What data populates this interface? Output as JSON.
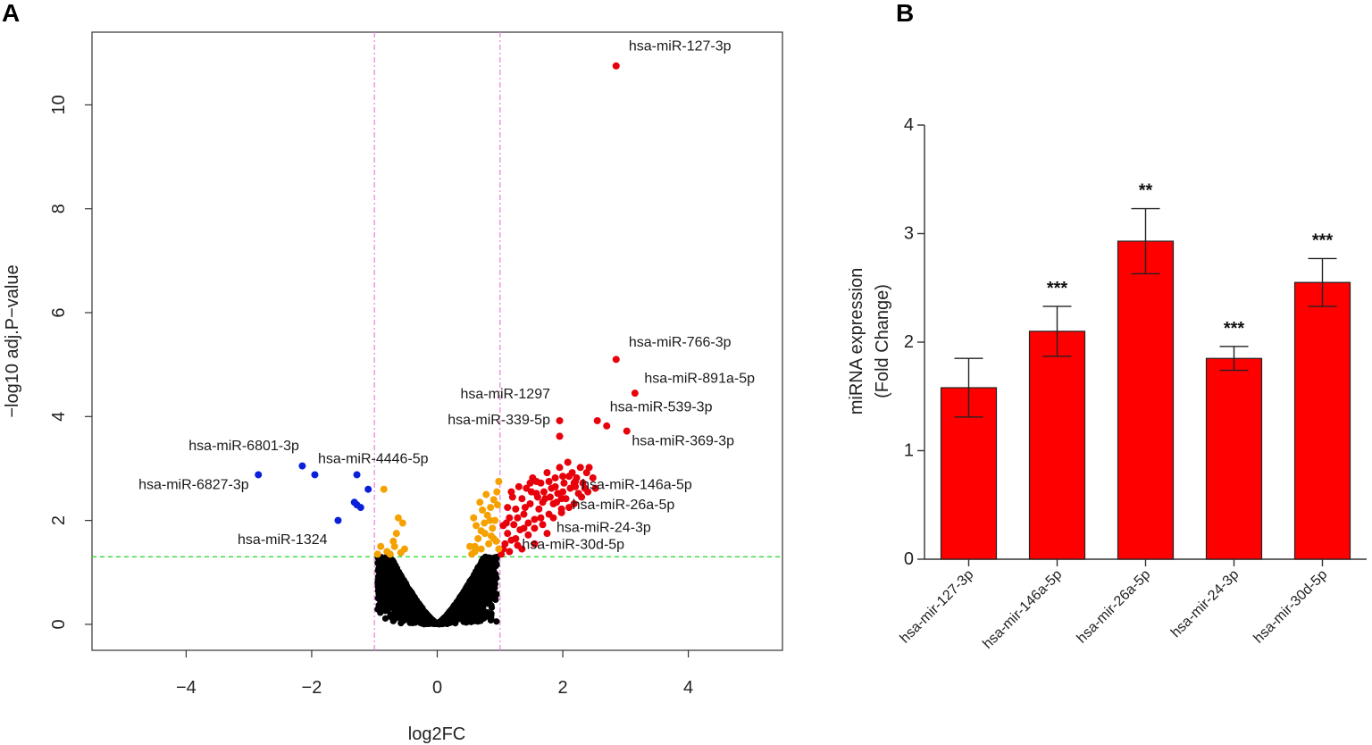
{
  "panels": {
    "a_label": "A",
    "b_label": "B"
  },
  "chart_data": [
    {
      "type": "scatter",
      "name": "volcano",
      "xlabel": "log2FC",
      "ylabel": "−log10 adj.P−value",
      "xlim": [
        -5.5,
        5.5
      ],
      "ylim": [
        -0.5,
        11.4
      ],
      "xticks": [
        -4,
        -2,
        0,
        2,
        4
      ],
      "yticks": [
        0,
        2,
        4,
        6,
        8,
        10
      ],
      "xtick_labels": [
        "−4",
        "−2",
        "0",
        "2",
        "4"
      ],
      "ytick_labels": [
        "0",
        "2",
        "4",
        "6",
        "8",
        "10"
      ],
      "vlines": [
        -1,
        1
      ],
      "hline": 1.3,
      "colors": {
        "up": "#e8000b",
        "down": "#0a1fd8",
        "moderate": "#f5a100",
        "ns": "#000000",
        "threshold_v": "#e77ee0",
        "threshold_h": "#33dd33"
      },
      "series": [
        {
          "name": "up-highlighted",
          "color": "#e8000b",
          "points": [
            [
              2.85,
              10.75
            ],
            [
              2.85,
              5.1
            ],
            [
              3.15,
              4.45
            ],
            [
              2.55,
              3.92
            ],
            [
              2.7,
              3.82
            ],
            [
              3.02,
              3.72
            ],
            [
              1.95,
              3.92
            ],
            [
              1.95,
              3.62
            ],
            [
              2.18,
              2.72
            ],
            [
              1.98,
              2.42
            ],
            [
              1.98,
              2.15
            ],
            [
              1.55,
              1.85
            ]
          ]
        },
        {
          "name": "up",
          "color": "#e8000b",
          "points": [
            [
              1.02,
              1.35
            ],
            [
              1.08,
              1.55
            ],
            [
              1.12,
              1.75
            ],
            [
              1.05,
              1.45
            ],
            [
              1.15,
              2.05
            ],
            [
              1.18,
              1.62
            ],
            [
              1.22,
              1.92
            ],
            [
              1.25,
              2.22
            ],
            [
              1.28,
              1.52
            ],
            [
              1.32,
              1.82
            ],
            [
              1.35,
              2.42
            ],
            [
              1.38,
              2.12
            ],
            [
              1.42,
              2.62
            ],
            [
              1.45,
              1.72
            ],
            [
              1.48,
              2.32
            ],
            [
              1.52,
              2.82
            ],
            [
              1.55,
              2.02
            ],
            [
              1.58,
              2.52
            ],
            [
              1.62,
              2.22
            ],
            [
              1.65,
              2.72
            ],
            [
              1.68,
              1.92
            ],
            [
              1.72,
              2.42
            ],
            [
              1.75,
              2.92
            ],
            [
              1.78,
              2.12
            ],
            [
              1.82,
              2.62
            ],
            [
              1.85,
              2.32
            ],
            [
              1.88,
              2.82
            ],
            [
              1.92,
              2.52
            ],
            [
              1.95,
              3.02
            ],
            [
              1.98,
              2.22
            ],
            [
              2.02,
              2.72
            ],
            [
              2.05,
              2.42
            ],
            [
              2.08,
              3.12
            ],
            [
              2.12,
              2.62
            ],
            [
              2.15,
              2.92
            ],
            [
              2.18,
              2.32
            ],
            [
              2.22,
              2.82
            ],
            [
              2.25,
              2.52
            ],
            [
              2.28,
              3.02
            ],
            [
              2.32,
              2.72
            ],
            [
              2.35,
              2.62
            ],
            [
              2.38,
              2.92
            ],
            [
              2.42,
              3.02
            ],
            [
              2.48,
              2.82
            ],
            [
              2.52,
              2.62
            ],
            [
              1.1,
              1.95
            ],
            [
              1.2,
              2.45
            ],
            [
              1.3,
              2.65
            ],
            [
              1.4,
              2.25
            ],
            [
              1.5,
              2.55
            ],
            [
              1.6,
              2.45
            ],
            [
              1.7,
              2.55
            ],
            [
              1.8,
              2.45
            ],
            [
              1.9,
              2.35
            ],
            [
              2.0,
              2.55
            ],
            [
              2.1,
              2.85
            ],
            [
              2.2,
              2.65
            ],
            [
              2.3,
              2.45
            ],
            [
              1.15,
              1.4
            ],
            [
              1.25,
              1.65
            ],
            [
              1.35,
              1.45
            ],
            [
              1.45,
              1.95
            ],
            [
              1.55,
              1.55
            ],
            [
              1.65,
              2.05
            ],
            [
              1.75,
              1.75
            ],
            [
              1.85,
              2.05
            ],
            [
              2.0,
              2.85
            ],
            [
              2.1,
              2.25
            ],
            [
              2.2,
              2.75
            ],
            [
              2.4,
              2.55
            ],
            [
              1.05,
              1.9
            ],
            [
              1.12,
              2.25
            ],
            [
              1.18,
              2.55
            ],
            [
              1.28,
              2.05
            ],
            [
              1.38,
              1.85
            ],
            [
              1.48,
              2.72
            ],
            [
              1.58,
              2.75
            ],
            [
              1.68,
              2.35
            ],
            [
              1.78,
              2.75
            ],
            [
              1.88,
              2.65
            ]
          ]
        },
        {
          "name": "down",
          "color": "#0a1fd8",
          "points": [
            [
              -2.85,
              2.88
            ],
            [
              -2.15,
              3.05
            ],
            [
              -1.95,
              2.88
            ],
            [
              -1.28,
              2.88
            ],
            [
              -1.1,
              2.6
            ],
            [
              -1.32,
              2.35
            ],
            [
              -1.22,
              2.25
            ],
            [
              -1.28,
              2.3
            ],
            [
              -1.58,
              2.0
            ]
          ]
        },
        {
          "name": "moderate",
          "color": "#f5a100",
          "points": [
            [
              -0.85,
              2.6
            ],
            [
              -0.62,
              2.05
            ],
            [
              -0.55,
              1.95
            ],
            [
              -0.65,
              1.75
            ],
            [
              -0.7,
              1.6
            ],
            [
              -0.52,
              1.45
            ],
            [
              -0.8,
              1.4
            ],
            [
              -0.9,
              1.5
            ],
            [
              -0.75,
              1.35
            ],
            [
              -0.95,
              1.35
            ],
            [
              -0.58,
              1.38
            ],
            [
              -0.68,
              1.5
            ],
            [
              0.55,
              1.35
            ],
            [
              0.6,
              1.5
            ],
            [
              0.65,
              1.65
            ],
            [
              0.7,
              1.8
            ],
            [
              0.75,
              1.95
            ],
            [
              0.8,
              2.1
            ],
            [
              0.85,
              2.25
            ],
            [
              0.9,
              2.4
            ],
            [
              0.95,
              2.55
            ],
            [
              0.98,
              1.45
            ],
            [
              0.62,
              1.9
            ],
            [
              0.72,
              2.2
            ],
            [
              0.82,
              1.55
            ],
            [
              0.88,
              1.85
            ],
            [
              0.92,
              2.0
            ],
            [
              0.96,
              2.3
            ],
            [
              0.58,
              2.05
            ],
            [
              0.68,
              2.35
            ],
            [
              0.78,
              2.5
            ],
            [
              0.86,
              1.7
            ],
            [
              0.94,
              1.6
            ],
            [
              0.52,
              1.5
            ],
            [
              0.7,
              1.45
            ],
            [
              0.76,
              1.75
            ],
            [
              0.84,
              2.0
            ],
            [
              0.9,
              1.65
            ],
            [
              0.98,
              2.75
            ],
            [
              0.6,
              1.4
            ]
          ]
        }
      ],
      "black_cloud": {
        "count": 2200,
        "scale": 1.9,
        "exponent": 1.3,
        "color": "#000000"
      },
      "annotations": [
        {
          "text": "hsa-miR-127-3p",
          "x": 3.05,
          "y": 11.05,
          "anchor": "start"
        },
        {
          "text": "hsa-miR-766-3p",
          "x": 3.05,
          "y": 5.35,
          "anchor": "start"
        },
        {
          "text": "hsa-miR-891a-5p",
          "x": 3.3,
          "y": 4.65,
          "anchor": "start"
        },
        {
          "text": "hsa-miR-539-3p",
          "x": 2.75,
          "y": 4.1,
          "anchor": "start"
        },
        {
          "text": "hsa-miR-369-3p",
          "x": 3.1,
          "y": 3.45,
          "anchor": "start"
        },
        {
          "text": "hsa-miR-1297",
          "x": 1.8,
          "y": 4.35,
          "anchor": "end"
        },
        {
          "text": "hsa-miR-339-5p",
          "x": 1.8,
          "y": 3.85,
          "anchor": "end"
        },
        {
          "text": "hsa-miR-146a-5p",
          "x": 2.3,
          "y": 2.6,
          "anchor": "start"
        },
        {
          "text": "hsa-miR-26a-5p",
          "x": 2.15,
          "y": 2.22,
          "anchor": "start"
        },
        {
          "text": "hsa-miR-24-3p",
          "x": 1.9,
          "y": 1.78,
          "anchor": "start"
        },
        {
          "text": "hsa-miR-30d-5p",
          "x": 1.35,
          "y": 1.45,
          "anchor": "start"
        },
        {
          "text": "hsa-miR-6801-3p",
          "x": -2.2,
          "y": 3.35,
          "anchor": "end"
        },
        {
          "text": "hsa-miR-4446-5p",
          "x": -1.9,
          "y": 3.1,
          "anchor": "start"
        },
        {
          "text": "hsa-miR-6827-3p",
          "x": -3.0,
          "y": 2.6,
          "anchor": "end"
        },
        {
          "text": "hsa-miR-1324",
          "x": -1.75,
          "y": 1.55,
          "anchor": "end"
        }
      ]
    },
    {
      "type": "bar",
      "name": "qpcr",
      "ylabel_line1": "miRNA expression",
      "ylabel_line2": "(Fold Change)",
      "ylim": [
        0,
        4
      ],
      "yticks": [
        0,
        1,
        2,
        3,
        4
      ],
      "ytick_labels": [
        "0",
        "1",
        "2",
        "3",
        "4"
      ],
      "bar_color": "#ff0000",
      "categories": [
        "hsa-mir-127-3p",
        "hsa-mir-146a-5p",
        "hsa-mir-26a-5p",
        "hsa-mir-24-3p",
        "hsa-mir-30d-5p"
      ],
      "values": [
        1.58,
        2.1,
        2.93,
        1.85,
        2.55
      ],
      "errors": [
        0.27,
        0.23,
        0.3,
        0.11,
        0.22
      ],
      "significance": [
        "",
        "***",
        "**",
        "***",
        "***"
      ]
    }
  ]
}
